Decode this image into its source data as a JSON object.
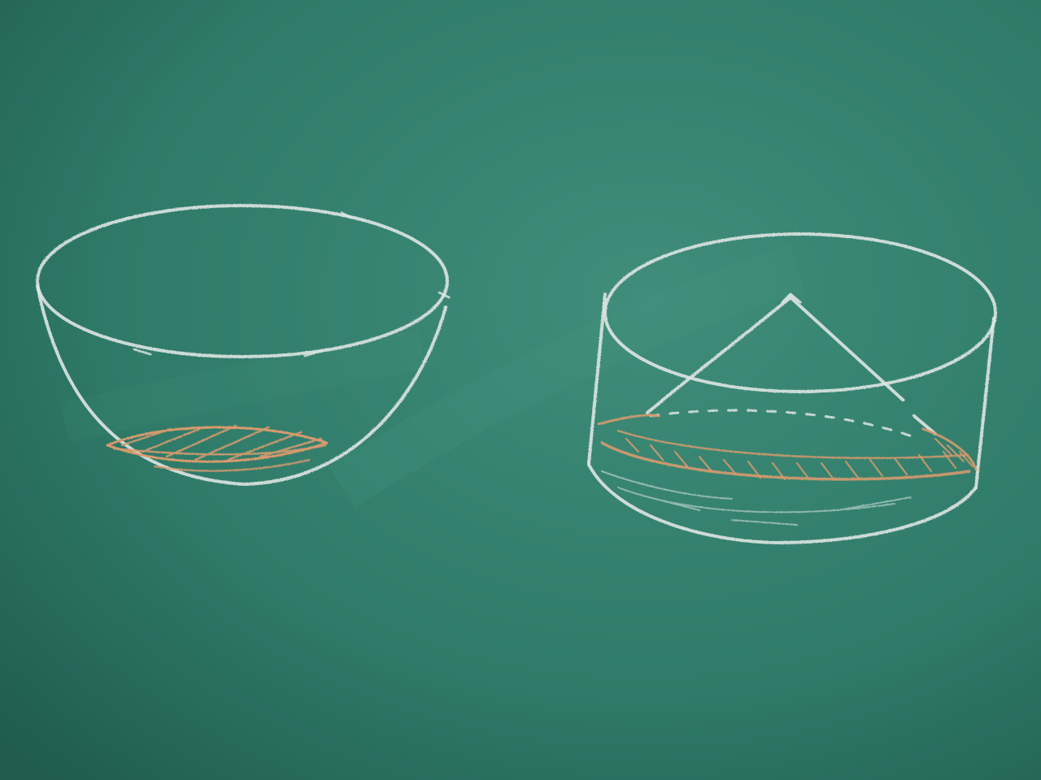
{
  "scene": {
    "board_color": "#2f7a68",
    "board_highlight": "#3f8d7a",
    "board_shadow": "#1f5c4e",
    "chalk_white": "#dfe6e3",
    "chalk_orange": "#d79a6e"
  },
  "drawings": [
    {
      "name": "hemispherical-bowl-drawing",
      "content": "hemisphere-with-liquid"
    },
    {
      "name": "cylinder-with-cone-drawing",
      "content": "cylinder-with-inner-cone-and-liquid"
    }
  ]
}
